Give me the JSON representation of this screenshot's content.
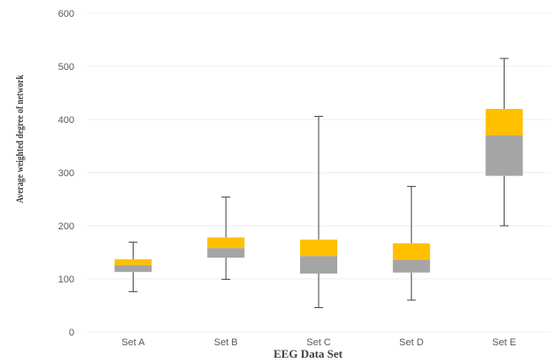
{
  "chart_data": {
    "type": "boxplot",
    "xlabel": "EEG Data Set",
    "ylabel": "Average weighted degree of network",
    "ylim": [
      0,
      600
    ],
    "yticks": [
      0,
      100,
      200,
      300,
      400,
      500,
      600
    ],
    "grid": true,
    "legend": "none",
    "colors": {
      "upper_box": "#ffc000",
      "lower_box": "#a5a5a5",
      "whisker": "#404040",
      "grid": "#eeeeee"
    },
    "categories": [
      "Set A",
      "Set B",
      "Set C",
      "Set D",
      "Set E"
    ],
    "boxes": [
      {
        "min": 76,
        "q1": 113,
        "median": 126,
        "q3": 137,
        "max": 169
      },
      {
        "min": 99,
        "q1": 140,
        "median": 158,
        "q3": 178,
        "max": 254
      },
      {
        "min": 46,
        "q1": 110,
        "median": 143,
        "q3": 174,
        "max": 406
      },
      {
        "min": 60,
        "q1": 112,
        "median": 136,
        "q3": 167,
        "max": 274
      },
      {
        "min": 200,
        "q1": 294,
        "median": 370,
        "q3": 420,
        "max": 515
      }
    ]
  }
}
